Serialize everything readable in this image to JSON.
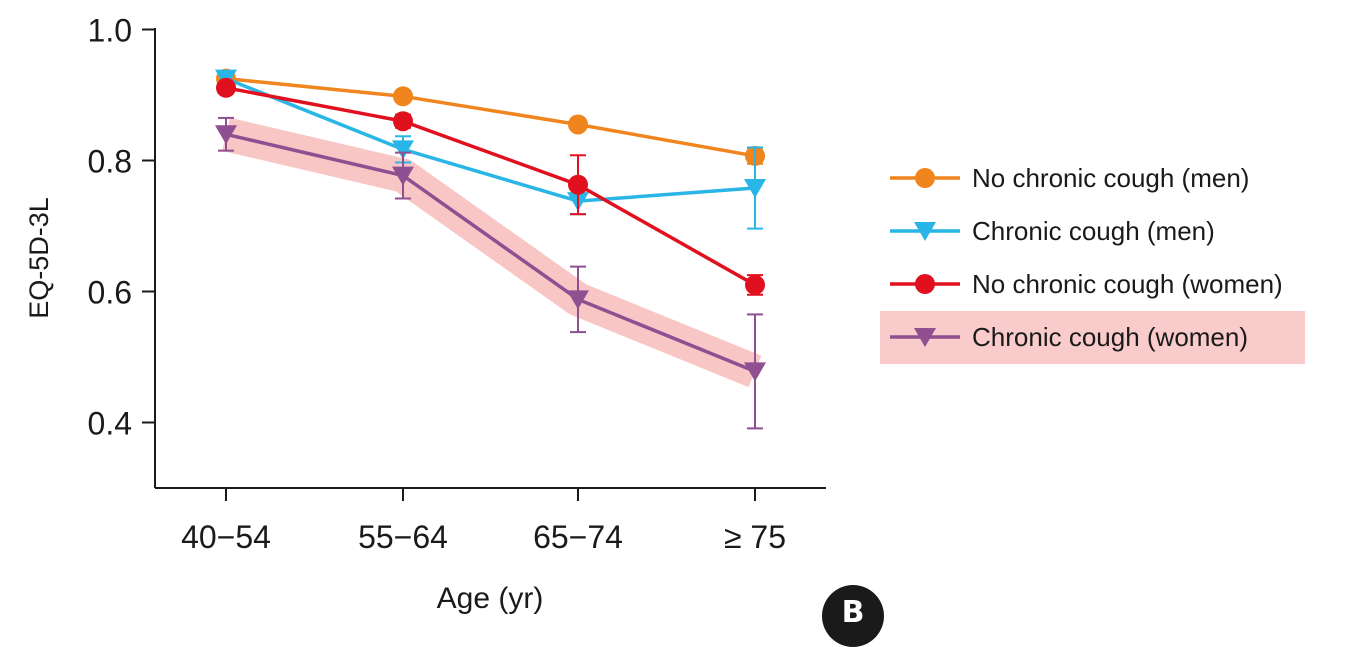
{
  "chart_data": {
    "type": "line",
    "title": "",
    "xlabel": "Age (yr)",
    "ylabel": "EQ-5D-3L",
    "categories": [
      "40−54",
      "55−64",
      "65−74",
      "≥ 75"
    ],
    "ylim": [
      0.3,
      1.0
    ],
    "yticks": [
      "0.4",
      "0.6",
      "0.8",
      "1.0"
    ],
    "ytick_values": [
      0.4,
      0.6,
      0.8,
      1.0
    ],
    "grid": false,
    "legend_position": "right",
    "highlighted_series": "Chronic cough (women)",
    "series": [
      {
        "name": "No chronic cough (men)",
        "marker": "circle",
        "color": "#f0841d",
        "values": [
          0.925,
          0.898,
          0.855,
          0.807
        ],
        "error": [
          0.005,
          0.005,
          0.006,
          0.012
        ]
      },
      {
        "name": "Chronic cough (men)",
        "marker": "triangle-down",
        "color": "#29b6e6",
        "values": [
          0.925,
          0.817,
          0.738,
          0.758
        ],
        "error": [
          0.008,
          0.02,
          0.02,
          0.062
        ]
      },
      {
        "name": "No chronic cough (women)",
        "marker": "circle",
        "color": "#e1101f",
        "values": [
          0.911,
          0.86,
          0.763,
          0.61
        ],
        "error": [
          0.006,
          0.01,
          0.045,
          0.015
        ]
      },
      {
        "name": "Chronic cough (women)",
        "marker": "triangle-down",
        "color": "#8f4f90",
        "values": [
          0.84,
          0.777,
          0.588,
          0.478
        ],
        "error": [
          0.025,
          0.035,
          0.05,
          0.087
        ]
      }
    ]
  },
  "legend": {
    "items": [
      "No chronic cough (men)",
      "Chronic cough (men)",
      "No chronic cough (women)",
      "Chronic cough (women)"
    ]
  },
  "panel_label": "B"
}
